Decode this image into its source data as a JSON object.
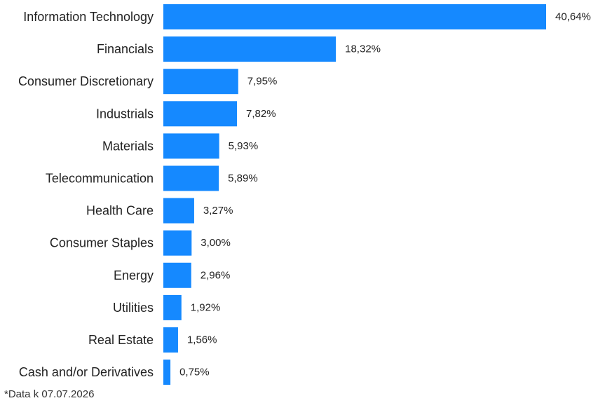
{
  "chart_data": {
    "type": "bar",
    "orientation": "horizontal",
    "categories": [
      "Information Technology",
      "Financials",
      "Consumer Discretionary",
      "Industrials",
      "Materials",
      "Telecommunication",
      "Health Care",
      "Consumer Staples",
      "Energy",
      "Utilities",
      "Real Estate",
      "Cash and/or Derivatives"
    ],
    "values": [
      40.64,
      18.32,
      7.95,
      7.82,
      5.93,
      5.89,
      3.27,
      3.0,
      2.96,
      1.92,
      1.56,
      0.75
    ],
    "value_labels": [
      "40,64%",
      "18,32%",
      "7,95%",
      "7,82%",
      "5,93%",
      "5,89%",
      "3,27%",
      "3,00%",
      "2,96%",
      "1,92%",
      "1,56%",
      "0,75%"
    ],
    "bar_color": "#1589FF",
    "grid": false,
    "legend": "none",
    "xlim": [
      0,
      40.64
    ]
  },
  "footnote": "*Data k 07.07.2026"
}
